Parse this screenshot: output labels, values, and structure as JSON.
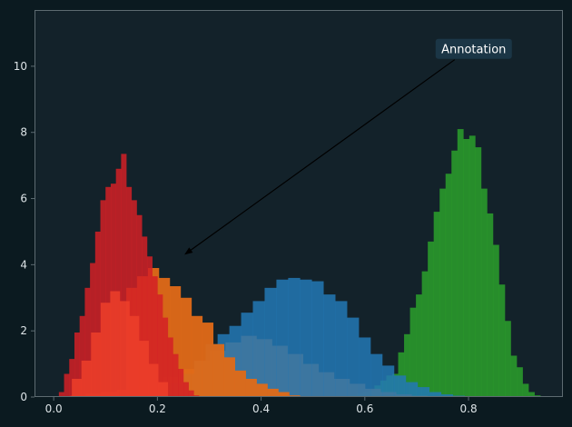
{
  "chart_data": {
    "type": "bar",
    "title": "",
    "xlabel": "",
    "ylabel": "",
    "xlim": [
      -0.037,
      0.982
    ],
    "ylim": [
      0,
      11.7
    ],
    "xticks": [
      "0.0",
      "0.2",
      "0.4",
      "0.6",
      "0.8"
    ],
    "xtick_values": [
      0.0,
      0.2,
      0.4,
      0.6,
      0.8
    ],
    "yticks": [
      "0",
      "2",
      "4",
      "6",
      "8",
      "10"
    ],
    "ytick_values": [
      0,
      2,
      4,
      6,
      8,
      10
    ],
    "grid": false,
    "legend": "none",
    "annotation": {
      "text": "Annotation",
      "xy": [
        0.252,
        4.3
      ],
      "xytext": [
        0.81,
        10.5
      ]
    },
    "colors": {
      "figure_bg": "#0b1a20",
      "axes_bg": "#13222a",
      "spine": "#5d6b71",
      "tick_text": "#dce3e6",
      "annotation_bg": "#1b3646",
      "annotation_text": "#ffffff"
    },
    "series": [
      {
        "color": "#2ca02c",
        "alpha": 0.85,
        "bins": [
          0.55,
          0.9385
        ],
        "values": [
          0.03,
          0.03,
          0.06,
          0.1,
          0.15,
          0.2,
          0.35,
          0.5,
          0.65,
          0.7,
          1.35,
          1.9,
          2.7,
          3.1,
          3.8,
          4.7,
          5.6,
          6.3,
          6.75,
          7.45,
          8.1,
          7.8,
          7.9,
          7.55,
          6.3,
          5.55,
          4.6,
          3.4,
          2.3,
          1.25,
          0.9,
          0.4,
          0.15,
          0.05
        ]
      },
      {
        "color": "#e8772e",
        "alpha": 0.85,
        "bins": [
          0.032,
          0.75
        ],
        "values": [
          0.05,
          0.1,
          0.15,
          0.22,
          0.32,
          0.45,
          0.62,
          0.85,
          1.1,
          1.4,
          1.65,
          1.85,
          1.75,
          1.55,
          1.3,
          1.0,
          0.75,
          0.55,
          0.4,
          0.25,
          0.15,
          0.08,
          0.04,
          0.02
        ]
      },
      {
        "color": "#2378b5",
        "alpha": 0.85,
        "bins": [
          0.18,
          0.815
        ],
        "values": [
          0.1,
          0.2,
          0.4,
          0.7,
          1.1,
          1.6,
          1.9,
          2.15,
          2.55,
          2.9,
          3.3,
          3.55,
          3.6,
          3.55,
          3.5,
          3.1,
          2.9,
          2.4,
          1.8,
          1.3,
          0.95,
          0.65,
          0.45,
          0.3,
          0.15,
          0.08,
          0.04,
          0.02
        ]
      },
      {
        "color": "#e06a17",
        "alpha": 0.95,
        "bins": [
          0.14,
          0.475
        ],
        "values": [
          3.3,
          3.65,
          3.9,
          3.6,
          3.35,
          3.0,
          2.45,
          2.25,
          1.6,
          1.2,
          0.8,
          0.55,
          0.4,
          0.25,
          0.15,
          0.05
        ]
      },
      {
        "color": "#d42026",
        "alpha": 0.85,
        "bins": [
          0.01,
          0.28
        ],
        "values": [
          0.15,
          0.7,
          1.15,
          1.95,
          2.45,
          3.3,
          4.05,
          5.0,
          5.95,
          6.35,
          6.45,
          6.9,
          7.35,
          6.35,
          5.95,
          5.5,
          4.85,
          4.25,
          3.65,
          3.1,
          2.4,
          1.8,
          1.3,
          0.85,
          0.45,
          0.2,
          0.05
        ]
      },
      {
        "color": "#ed3f2a",
        "alpha": 0.85,
        "bins": [
          0.035,
          0.22
        ],
        "values": [
          0.55,
          1.1,
          1.95,
          2.85,
          3.2,
          2.9,
          2.45,
          1.7,
          1.0,
          0.45
        ]
      }
    ]
  }
}
